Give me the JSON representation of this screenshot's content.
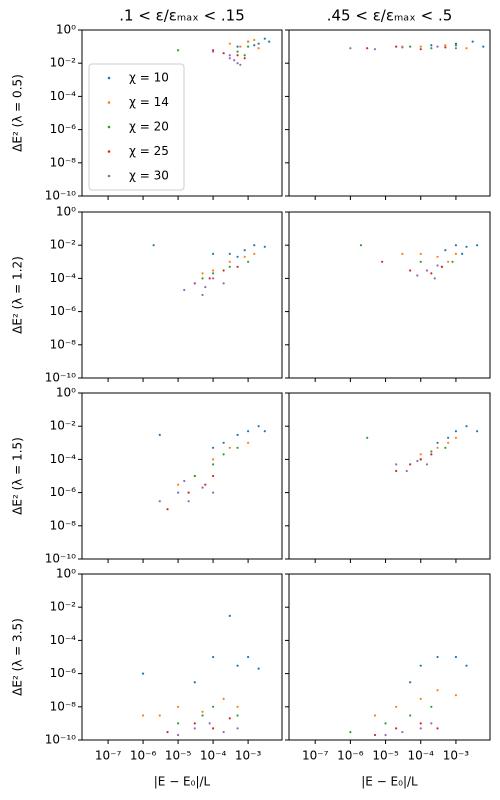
{
  "chart_data": {
    "type": "scatter",
    "xscale": "log",
    "yscale": "log",
    "legend": "upper left",
    "col_titles": [
      ".1 < ε/εₘₐₓ < .15",
      ".45 < ε/εₘₐₓ < .5"
    ],
    "row_labels": [
      "ΔE² (λ = 0.5)",
      "ΔE² (λ = 1.2)",
      "ΔE² (λ = 1.5)",
      "ΔE² (λ = 3.5)"
    ],
    "xlabel": "|E − E₀|/L",
    "xlim": [
      1.8e-08,
      0.0093
    ],
    "ylim": [
      1e-10,
      1
    ],
    "xticks": [
      {
        "value": 1e-07,
        "label": "10⁻⁷"
      },
      {
        "value": 1e-06,
        "label": "10⁻⁶"
      },
      {
        "value": 1e-05,
        "label": "10⁻⁵"
      },
      {
        "value": 0.0001,
        "label": "10⁻⁴"
      },
      {
        "value": 0.001,
        "label": "10⁻³"
      }
    ],
    "yticks": [
      {
        "value": 1,
        "label": "10⁰"
      },
      {
        "value": 0.01,
        "label": "10⁻²"
      },
      {
        "value": 0.0001,
        "label": "10⁻⁴"
      },
      {
        "value": 1e-06,
        "label": "10⁻⁶"
      },
      {
        "value": 1e-08,
        "label": "10⁻⁸"
      },
      {
        "value": 1e-10,
        "label": "10⁻¹⁰"
      }
    ],
    "series": [
      {
        "name": "χ = 10",
        "color": "#1f77b4"
      },
      {
        "name": "χ = 14",
        "color": "#ff7f0e"
      },
      {
        "name": "χ = 20",
        "color": "#2ca02c"
      },
      {
        "name": "χ = 25",
        "color": "#d62728"
      },
      {
        "name": "χ = 30",
        "color": "#9467bd"
      }
    ],
    "panels": [
      [
        {
          "series": [
            {
              "x": [
                0.001,
                0.002,
                0.003,
                0.0005,
                0.004,
                0.0015
              ],
              "y": [
                0.2,
                0.15,
                0.3,
                0.1,
                0.2,
                0.12
              ]
            },
            {
              "x": [
                0.0006,
                0.001,
                0.002,
                0.0003,
                0.0015
              ],
              "y": [
                0.1,
                0.2,
                0.08,
                0.15,
                0.25
              ]
            },
            {
              "x": [
                1e-05,
                0.0005,
                0.001,
                0.0008
              ],
              "y": [
                0.06,
                0.05,
                0.1,
                0.03
              ]
            },
            {
              "x": [
                0.0001,
                0.0002,
                0.0005,
                0.0008
              ],
              "y": [
                0.06,
                0.04,
                0.03,
                0.02
              ]
            },
            {
              "x": [
                0.0001,
                0.0003,
                0.0005,
                0.0004,
                0.0006,
                0.0003
              ],
              "y": [
                0.05,
                0.02,
                0.01,
                0.015,
                0.008,
                0.03
              ]
            }
          ]
        },
        {
          "series": [
            {
              "x": [
                0.001,
                0.003,
                0.006,
                0.0002
              ],
              "y": [
                0.15,
                0.2,
                0.1,
                0.12
              ]
            },
            {
              "x": [
                0.0001,
                0.0005,
                0.002,
                3e-05
              ],
              "y": [
                0.1,
                0.12,
                0.08,
                0.1
              ]
            },
            {
              "x": [
                5e-05,
                0.0002,
                0.001
              ],
              "y": [
                0.1,
                0.08,
                0.12
              ]
            },
            {
              "x": [
                3e-06,
                2e-05,
                0.0001,
                0.0005
              ],
              "y": [
                0.08,
                0.1,
                0.07,
                0.09
              ]
            },
            {
              "x": [
                1e-06,
                5e-06,
                3e-05,
                0.0003,
                0.001
              ],
              "y": [
                0.08,
                0.07,
                0.09,
                0.1,
                0.08
              ]
            }
          ]
        }
      ],
      [
        {
          "series": [
            {
              "x": [
                2e-06,
                0.0003,
                0.0008,
                0.0015,
                0.003,
                0.0005,
                0.0001
              ],
              "y": [
                0.01,
                0.003,
                0.005,
                0.01,
                0.008,
                0.002,
                0.003
              ]
            },
            {
              "x": [
                0.0001,
                0.0003,
                0.0008,
                0.0015,
                5e-05
              ],
              "y": [
                0.0003,
                0.001,
                0.002,
                0.003,
                0.0002
              ]
            },
            {
              "x": [
                5e-05,
                0.0001,
                0.0003,
                0.001
              ],
              "y": [
                0.0001,
                0.0002,
                0.0005,
                0.001
              ]
            },
            {
              "x": [
                3e-05,
                8e-05,
                0.0002,
                0.0005
              ],
              "y": [
                5e-05,
                0.0001,
                0.0003,
                0.0005
              ]
            },
            {
              "x": [
                1.5e-05,
                3e-05,
                6e-05,
                0.0001,
                0.0002,
                5e-05
              ],
              "y": [
                2e-05,
                5e-05,
                3e-05,
                0.0001,
                5e-05,
                1e-05
              ]
            }
          ]
        },
        {
          "series": [
            {
              "x": [
                0.0005,
                0.001,
                0.002,
                0.004,
                0.0015
              ],
              "y": [
                0.005,
                0.01,
                0.008,
                0.01,
                0.003
              ]
            },
            {
              "x": [
                0.0001,
                0.0003,
                0.0006,
                0.001,
                3e-05
              ],
              "y": [
                0.003,
                0.002,
                0.001,
                0.003,
                0.003
              ]
            },
            {
              "x": [
                2e-06,
                0.0001,
                0.0004,
                0.0008
              ],
              "y": [
                0.01,
                0.001,
                0.0005,
                0.001
              ]
            },
            {
              "x": [
                8e-06,
                5e-05,
                0.0002,
                0.0004
              ],
              "y": [
                0.001,
                0.0003,
                0.0002,
                0.0005
              ]
            },
            {
              "x": [
                8e-05,
                0.00015,
                0.00025,
                0.0003
              ],
              "y": [
                0.00015,
                0.0003,
                0.0001,
                0.0006
              ]
            }
          ]
        }
      ],
      [
        {
          "series": [
            {
              "x": [
                0.0002,
                0.0005,
                0.001,
                0.002,
                0.003,
                0.0001,
                3e-06
              ],
              "y": [
                0.001,
                0.003,
                0.005,
                0.01,
                0.005,
                0.0005,
                0.003
              ]
            },
            {
              "x": [
                3e-05,
                0.0001,
                0.0003,
                0.001,
                1e-05
              ],
              "y": [
                1e-05,
                0.0001,
                0.0005,
                0.001,
                3e-06
              ]
            },
            {
              "x": [
                3e-05,
                0.0001,
                0.0002,
                0.0005
              ],
              "y": [
                1e-05,
                5e-05,
                0.0002,
                0.0005
              ]
            },
            {
              "x": [
                5e-06,
                2e-05,
                6e-05,
                0.0001
              ],
              "y": [
                1e-07,
                1e-06,
                3e-06,
                1e-05
              ]
            },
            {
              "x": [
                3e-06,
                1e-05,
                2e-05,
                5e-05,
                0.0001,
                1.5e-05
              ],
              "y": [
                3e-07,
                1e-06,
                3e-07,
                2e-06,
                1e-06,
                5e-06
              ]
            }
          ]
        },
        {
          "series": [
            {
              "x": [
                0.0003,
                0.0006,
                0.001,
                0.002,
                0.004
              ],
              "y": [
                0.001,
                0.002,
                0.005,
                0.01,
                0.005
              ]
            },
            {
              "x": [
                0.0001,
                0.0003,
                0.0006,
                0.001
              ],
              "y": [
                0.0002,
                0.0005,
                0.001,
                0.002
              ]
            },
            {
              "x": [
                0.0001,
                0.0002,
                0.0005,
                3e-06
              ],
              "y": [
                0.0001,
                0.0003,
                0.0005,
                0.002
              ]
            },
            {
              "x": [
                2e-05,
                5e-05,
                0.0001,
                0.0002
              ],
              "y": [
                2e-05,
                5e-05,
                0.0001,
                0.0002
              ]
            },
            {
              "x": [
                2e-05,
                4e-05,
                8e-05,
                0.00015
              ],
              "y": [
                5e-05,
                2e-05,
                8e-05,
                5e-05
              ]
            }
          ]
        }
      ],
      [
        {
          "series": [
            {
              "x": [
                0.0003,
                0.0001,
                0.0005,
                0.001,
                0.002,
                3e-05,
                1e-06
              ],
              "y": [
                0.003,
                1e-05,
                3e-06,
                1e-05,
                2e-06,
                3e-07,
                1e-06
              ]
            },
            {
              "x": [
                3e-06,
                1e-05,
                5e-05,
                0.0002,
                0.0005,
                1e-06
              ],
              "y": [
                3e-09,
                1e-08,
                5e-09,
                3e-08,
                1e-08,
                3e-09
              ]
            },
            {
              "x": [
                1e-05,
                5e-05,
                0.0001,
                0.0005
              ],
              "y": [
                1e-09,
                3e-09,
                1e-08,
                3e-09
              ]
            },
            {
              "x": [
                5e-06,
                3e-05,
                0.0001,
                0.0003
              ],
              "y": [
                3e-10,
                1e-09,
                5e-10,
                2e-09
              ]
            },
            {
              "x": [
                1e-05,
                3e-05,
                8e-05,
                0.0002,
                0.0005
              ],
              "y": [
                2e-10,
                5e-10,
                1e-09,
                3e-10,
                5e-10
              ]
            }
          ]
        },
        {
          "series": [
            {
              "x": [
                0.0001,
                0.0003,
                0.001,
                0.002,
                5e-05
              ],
              "y": [
                3e-06,
                1e-05,
                1e-05,
                3e-06,
                3e-07
              ]
            },
            {
              "x": [
                2e-05,
                0.0001,
                0.0003,
                0.001,
                5e-06
              ],
              "y": [
                1e-08,
                3e-08,
                1e-07,
                5e-08,
                3e-09
              ]
            },
            {
              "x": [
                1e-06,
                1e-05,
                5e-05,
                0.0002
              ],
              "y": [
                3e-10,
                1e-09,
                3e-09,
                1e-08
              ]
            },
            {
              "x": [
                5e-06,
                2e-05,
                0.0001,
                0.0003
              ],
              "y": [
                2e-10,
                5e-10,
                1e-09,
                5e-10
              ]
            },
            {
              "x": [
                1e-05,
                3e-05,
                0.0001,
                0.0002
              ],
              "y": [
                2e-10,
                3e-10,
                5e-10,
                1e-09
              ]
            }
          ]
        }
      ]
    ]
  }
}
